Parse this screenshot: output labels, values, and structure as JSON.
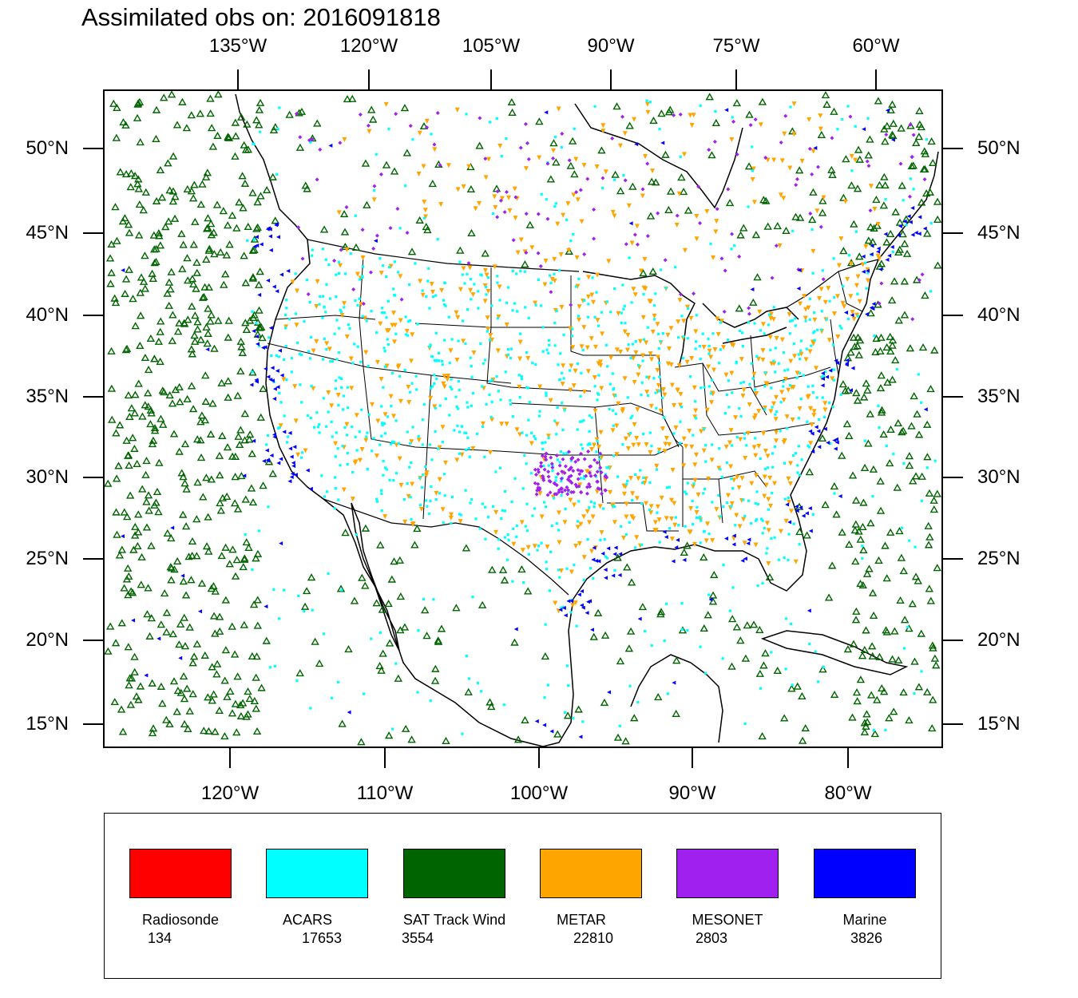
{
  "title": "Assimilated obs on: 2016091818",
  "map": {
    "projection": "lambert-conformal",
    "lon_range": [
      -127,
      -74
    ],
    "lat_range": [
      14,
      53
    ],
    "top_lon_labels": [
      "135°W",
      "120°W",
      "105°W",
      "90°W",
      "75°W",
      "60°W"
    ],
    "bottom_lon_labels": [
      "120°W",
      "110°W",
      "100°W",
      "90°W",
      "80°W"
    ],
    "left_lat_labels": [
      "50°N",
      "45°N",
      "40°N",
      "35°N",
      "30°N",
      "25°N",
      "20°N",
      "15°N"
    ],
    "right_lat_labels": [
      "50°N",
      "45°N",
      "40°N",
      "35°N",
      "30°N",
      "25°N",
      "20°N",
      "15°N"
    ]
  },
  "legend": [
    {
      "name": "Radiosonde",
      "count": "134",
      "color": "#ff0000",
      "marker": "circle"
    },
    {
      "name": "ACARS",
      "count": "17653",
      "color": "#00ffff",
      "marker": "square"
    },
    {
      "name": "SAT Track Wind",
      "count": "3554",
      "color": "#006400",
      "marker": "triangle-up-hollow"
    },
    {
      "name": "METAR",
      "count": "22810",
      "color": "#ffa500",
      "marker": "triangle-down"
    },
    {
      "name": "MESONET",
      "count": "2803",
      "color": "#a020f0",
      "marker": "diamond"
    },
    {
      "name": "Marine",
      "count": "3826",
      "color": "#0000ff",
      "marker": "triangle-left"
    }
  ]
}
